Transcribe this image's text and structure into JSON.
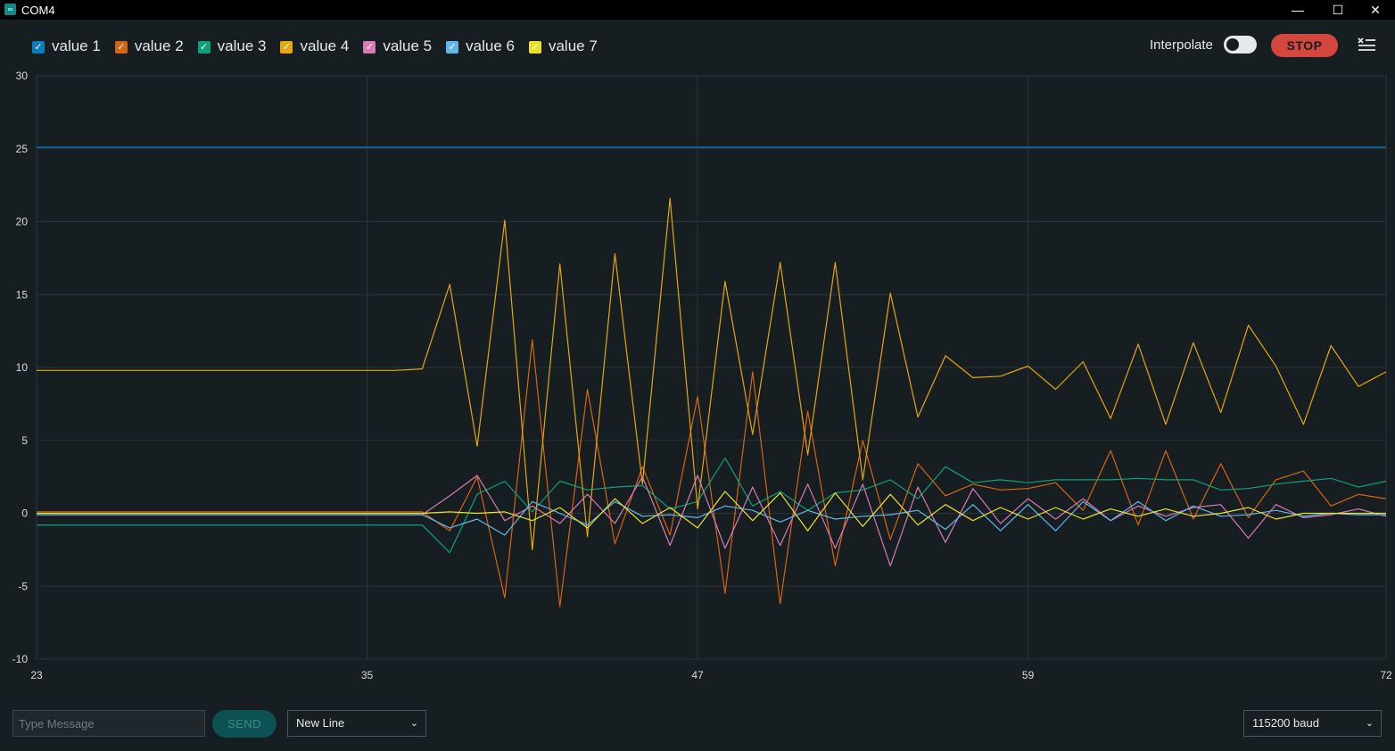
{
  "window": {
    "title": "COM4",
    "minimize_glyph": "—",
    "maximize_glyph": "☐",
    "close_glyph": "✕"
  },
  "toolbar": {
    "interpolate_label": "Interpolate",
    "interpolate_on": false,
    "stop_label": "STOP",
    "menu_icon": "clear-list-icon"
  },
  "footer": {
    "message_placeholder": "Type Message",
    "send_label": "SEND",
    "line_ending": "New Line",
    "baud_rate": "115200 baud"
  },
  "chart_data": {
    "type": "line",
    "title": "",
    "xlabel": "",
    "ylabel": "",
    "xlim": [
      23,
      72
    ],
    "ylim": [
      -10,
      30
    ],
    "xticks": [
      23,
      35,
      47,
      59,
      72
    ],
    "yticks": [
      -10,
      -5,
      0,
      5,
      10,
      15,
      20,
      25,
      30
    ],
    "grid": true,
    "legend": "top-left",
    "x": [
      23,
      24,
      25,
      26,
      27,
      28,
      29,
      30,
      31,
      32,
      33,
      34,
      35,
      36,
      37,
      38,
      39,
      40,
      41,
      42,
      43,
      44,
      45,
      46,
      47,
      48,
      49,
      50,
      51,
      52,
      53,
      54,
      55,
      56,
      57,
      58,
      59,
      60,
      61,
      62,
      63,
      64,
      65,
      66,
      67,
      68,
      69,
      70,
      71,
      72
    ],
    "series": [
      {
        "name": "value 1",
        "color": "#0b7ec2",
        "checked": true,
        "values": [
          25.1,
          25.1,
          25.1,
          25.1,
          25.1,
          25.1,
          25.1,
          25.1,
          25.1,
          25.1,
          25.1,
          25.1,
          25.1,
          25.1,
          25.1,
          25.1,
          25.1,
          25.1,
          25.1,
          25.1,
          25.1,
          25.1,
          25.1,
          25.1,
          25.1,
          25.1,
          25.1,
          25.1,
          25.1,
          25.1,
          25.1,
          25.1,
          25.1,
          25.1,
          25.1,
          25.1,
          25.1,
          25.1,
          25.1,
          25.1,
          25.1,
          25.1,
          25.1,
          25.1,
          25.1,
          25.1,
          25.1,
          25.1,
          25.1,
          25.1
        ]
      },
      {
        "name": "value 2",
        "color": "#d66511",
        "checked": true,
        "values": [
          0.1,
          0.1,
          0.1,
          0.1,
          0.1,
          0.1,
          0.1,
          0.1,
          0.1,
          0.1,
          0.1,
          0.1,
          0.1,
          0.1,
          0.1,
          -1.2,
          2.5,
          -5.8,
          11.9,
          -6.4,
          8.5,
          -2.1,
          3.2,
          -1.5,
          8.0,
          -5.5,
          9.7,
          -6.2,
          7.0,
          -3.6,
          5.0,
          -1.8,
          3.4,
          1.2,
          2.0,
          1.6,
          1.7,
          2.1,
          0.2,
          4.3,
          -0.8,
          4.3,
          -0.4,
          3.4,
          -0.3,
          2.3,
          2.9,
          0.5,
          1.3,
          1.0
        ]
      },
      {
        "name": "value 3",
        "color": "#0ca17a",
        "checked": true,
        "values": [
          -0.8,
          -0.8,
          -0.8,
          -0.8,
          -0.8,
          -0.8,
          -0.8,
          -0.8,
          -0.8,
          -0.8,
          -0.8,
          -0.8,
          -0.8,
          -0.8,
          -0.8,
          -2.7,
          1.3,
          2.2,
          0.1,
          2.2,
          1.6,
          1.8,
          1.9,
          0.3,
          0.8,
          3.8,
          0.5,
          1.5,
          0.2,
          1.4,
          1.6,
          2.3,
          1.0,
          3.2,
          2.1,
          2.3,
          2.1,
          2.3,
          2.3,
          2.3,
          2.4,
          2.3,
          2.3,
          1.6,
          1.7,
          2.0,
          2.2,
          2.4,
          1.8,
          2.2
        ]
      },
      {
        "name": "value 4",
        "color": "#e4a70f",
        "checked": true,
        "values": [
          9.8,
          9.8,
          9.8,
          9.8,
          9.8,
          9.8,
          9.8,
          9.8,
          9.8,
          9.8,
          9.8,
          9.8,
          9.8,
          9.8,
          9.9,
          15.7,
          4.6,
          20.1,
          -2.5,
          17.1,
          -1.6,
          17.8,
          2.0,
          21.6,
          0.3,
          15.9,
          5.4,
          17.2,
          4.0,
          17.2,
          2.3,
          15.1,
          6.6,
          10.8,
          9.3,
          9.4,
          10.1,
          8.5,
          10.4,
          6.5,
          11.6,
          6.1,
          11.7,
          6.9,
          12.9,
          10.1,
          6.1,
          11.5,
          8.7,
          9.7
        ]
      },
      {
        "name": "value 5",
        "color": "#d77ab5",
        "checked": true,
        "values": [
          -0.1,
          -0.1,
          -0.1,
          -0.1,
          -0.1,
          -0.1,
          -0.1,
          -0.1,
          -0.1,
          -0.1,
          -0.1,
          -0.1,
          -0.1,
          -0.1,
          -0.1,
          1.2,
          2.6,
          -0.5,
          0.5,
          -0.7,
          1.3,
          -0.7,
          2.5,
          -2.2,
          2.6,
          -2.4,
          1.8,
          -2.2,
          2.0,
          -2.4,
          2.0,
          -3.6,
          1.8,
          -2.0,
          1.7,
          -0.7,
          1.0,
          -0.4,
          1.0,
          -0.5,
          0.5,
          -0.2,
          0.4,
          0.6,
          -1.7,
          0.6,
          -0.3,
          -0.1,
          0.3,
          -0.2
        ]
      },
      {
        "name": "value 6",
        "color": "#62b6ea",
        "checked": true,
        "values": [
          -0.1,
          -0.1,
          -0.1,
          -0.1,
          -0.1,
          -0.1,
          -0.1,
          -0.1,
          -0.1,
          -0.1,
          -0.1,
          -0.1,
          -0.1,
          -0.1,
          -0.1,
          -1.0,
          -0.4,
          -1.5,
          0.8,
          0.0,
          -0.8,
          0.8,
          -0.2,
          -0.1,
          -0.3,
          0.5,
          0.2,
          -0.6,
          0.2,
          -0.4,
          -0.2,
          -0.1,
          0.2,
          -1.1,
          0.6,
          -1.2,
          0.6,
          -1.2,
          0.8,
          -0.5,
          0.8,
          -0.5,
          0.5,
          -0.2,
          -0.1,
          0.2,
          -0.2,
          0.0,
          -0.1,
          -0.1
        ]
      },
      {
        "name": "value 7",
        "color": "#ebe128",
        "checked": true,
        "values": [
          0.0,
          0.0,
          0.0,
          0.0,
          0.0,
          0.0,
          0.0,
          0.0,
          0.0,
          0.0,
          0.0,
          0.0,
          0.0,
          0.0,
          0.0,
          0.1,
          0.0,
          0.1,
          -0.5,
          0.4,
          -1.0,
          1.0,
          -0.7,
          0.4,
          -1.0,
          1.5,
          -0.5,
          1.4,
          -1.2,
          1.4,
          -0.9,
          1.3,
          -0.8,
          0.6,
          -0.5,
          0.4,
          -0.4,
          0.4,
          -0.4,
          0.3,
          -0.2,
          0.3,
          -0.2,
          0.0,
          0.4,
          -0.4,
          0.0,
          0.0,
          0.0,
          0.0
        ]
      }
    ]
  }
}
